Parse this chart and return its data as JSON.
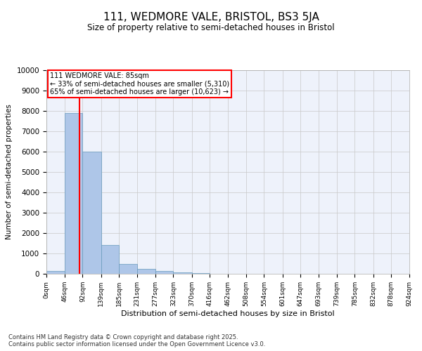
{
  "title": "111, WEDMORE VALE, BRISTOL, BS3 5JA",
  "subtitle": "Size of property relative to semi-detached houses in Bristol",
  "xlabel": "Distribution of semi-detached houses by size in Bristol",
  "ylabel": "Number of semi-detached properties",
  "annotation_line1": "111 WEDMORE VALE: 85sqm",
  "annotation_line2": "← 33% of semi-detached houses are smaller (5,310)",
  "annotation_line3": "65% of semi-detached houses are larger (10,623) →",
  "bin_edges": [
    0,
    46,
    92,
    139,
    185,
    231,
    277,
    323,
    370,
    416,
    462,
    508,
    554,
    601,
    647,
    693,
    739,
    785,
    832,
    878,
    924
  ],
  "bin_labels": [
    "0sqm",
    "46sqm",
    "92sqm",
    "139sqm",
    "185sqm",
    "231sqm",
    "277sqm",
    "323sqm",
    "370sqm",
    "416sqm",
    "462sqm",
    "508sqm",
    "554sqm",
    "601sqm",
    "647sqm",
    "693sqm",
    "739sqm",
    "785sqm",
    "832sqm",
    "878sqm",
    "924sqm"
  ],
  "bar_values": [
    150,
    7900,
    6000,
    1400,
    500,
    230,
    150,
    70,
    20,
    5,
    2,
    1,
    0,
    0,
    0,
    0,
    0,
    0,
    0,
    0
  ],
  "bar_color": "#aec6e8",
  "bar_edge_color": "#6699bb",
  "red_line_x": 85,
  "ylim": [
    0,
    10000
  ],
  "yticks": [
    0,
    1000,
    2000,
    3000,
    4000,
    5000,
    6000,
    7000,
    8000,
    9000,
    10000
  ],
  "footer_line1": "Contains HM Land Registry data © Crown copyright and database right 2025.",
  "footer_line2": "Contains public sector information licensed under the Open Government Licence v3.0.",
  "bg_color": "#eef2fb",
  "grid_color": "#c8c8c8"
}
